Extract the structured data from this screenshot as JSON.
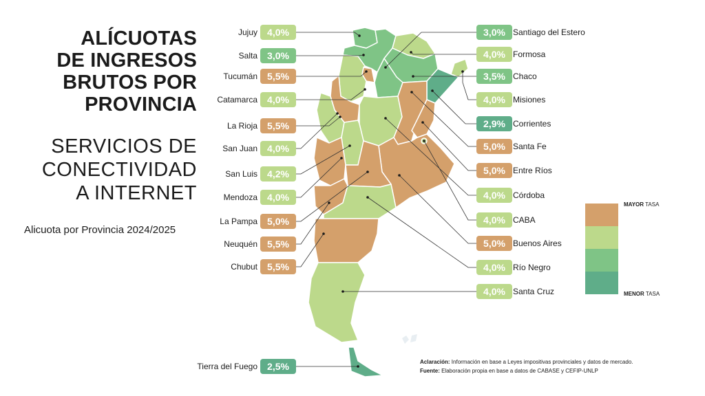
{
  "title": {
    "line1": "ALÍCUOTAS",
    "line2": "DE INGRESOS",
    "line3": "BRUTOS POR",
    "line4": "PROVINCIA",
    "sub1": "SERVICIOS DE",
    "sub2": "CONECTIVIDAD",
    "sub3": "A INTERNET"
  },
  "subtitle": "Alicuota por Provincia 2024/2025",
  "colors": {
    "high": "#d4a06b",
    "mid": "#bcd98b",
    "low": "#7fc486",
    "lowest": "#5fad89"
  },
  "provinces_left": [
    {
      "name": "Jujuy",
      "rate": "4,0%",
      "tier": "mid"
    },
    {
      "name": "Salta",
      "rate": "3,0%",
      "tier": "low"
    },
    {
      "name": "Tucumán",
      "rate": "5,5%",
      "tier": "high"
    },
    {
      "name": "Catamarca",
      "rate": "4,0%",
      "tier": "mid"
    },
    {
      "name": "La Rioja",
      "rate": "5,5%",
      "tier": "high"
    },
    {
      "name": "San Juan",
      "rate": "4,0%",
      "tier": "mid"
    },
    {
      "name": "San Luis",
      "rate": "4,2%",
      "tier": "mid"
    },
    {
      "name": "Mendoza",
      "rate": "4,0%",
      "tier": "mid"
    },
    {
      "name": "La Pampa",
      "rate": "5,0%",
      "tier": "high"
    },
    {
      "name": "Neuquén",
      "rate": "5,5%",
      "tier": "high"
    },
    {
      "name": "Chubut",
      "rate": "5,5%",
      "tier": "high"
    },
    {
      "name": "Tierra del Fuego",
      "rate": "2,5%",
      "tier": "lowest"
    }
  ],
  "provinces_right": [
    {
      "name": "Santiago del Estero",
      "rate": "3,0%",
      "tier": "low"
    },
    {
      "name": "Formosa",
      "rate": "4,0%",
      "tier": "mid"
    },
    {
      "name": "Chaco",
      "rate": "3,5%",
      "tier": "low"
    },
    {
      "name": "Misiones",
      "rate": "4,0%",
      "tier": "mid"
    },
    {
      "name": "Corrientes",
      "rate": "2,9%",
      "tier": "lowest"
    },
    {
      "name": "Santa Fe",
      "rate": "5,0%",
      "tier": "high"
    },
    {
      "name": "Entre Ríos",
      "rate": "5,0%",
      "tier": "high"
    },
    {
      "name": "Córdoba",
      "rate": "4,0%",
      "tier": "mid"
    },
    {
      "name": "CABA",
      "rate": "4,0%",
      "tier": "mid"
    },
    {
      "name": "Buenos Aires",
      "rate": "5,0%",
      "tier": "high"
    },
    {
      "name": "Río Negro",
      "rate": "4,0%",
      "tier": "mid"
    },
    {
      "name": "Santa Cruz",
      "rate": "4,0%",
      "tier": "mid"
    }
  ],
  "legend": {
    "top_bold": "MAYOR",
    "top_rest": " TASA",
    "bottom_bold": "MENOR",
    "bottom_rest": " TASA"
  },
  "notes": {
    "aclaracion_label": "Aclaración:",
    "aclaracion_text": " Información en base a Leyes impositivas provinciales y datos de mercado.",
    "fuente_label": "Fuente:",
    "fuente_text": " Elaboración propia en base a datos de CABASE y CEFIP-UNLP"
  }
}
